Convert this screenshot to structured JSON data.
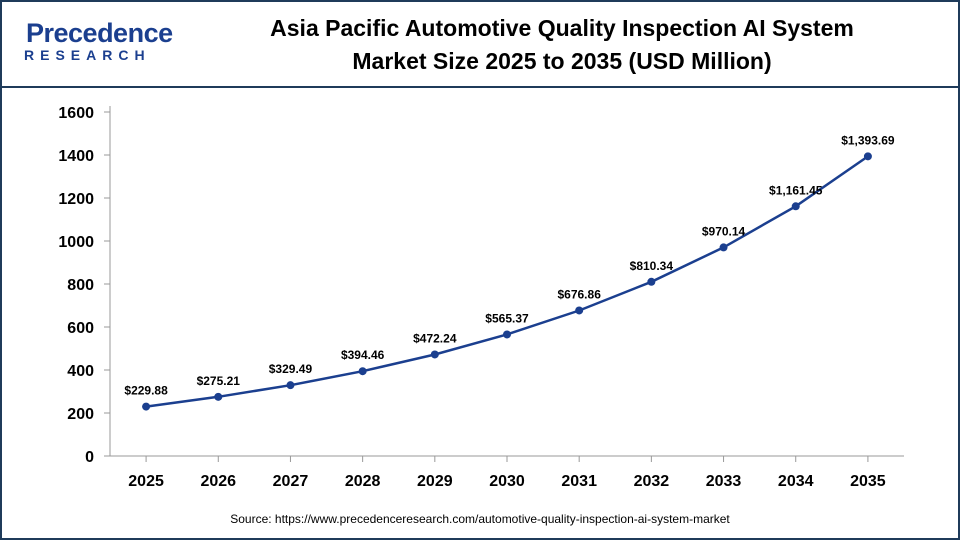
{
  "brand": {
    "name": "Precedence",
    "tagline": "RESEARCH",
    "color": "#1b3f8f"
  },
  "header": {
    "title_line1": "Asia Pacific Automotive Quality Inspection AI System",
    "title_line2": "Market Size 2025 to 2035 (USD Million)"
  },
  "source": "Source: https://www.precedenceresearch.com/automotive-quality-inspection-ai-system-market",
  "chart_data": {
    "type": "line",
    "title": "Asia Pacific Automotive Quality Inspection AI System Market Size 2025 to 2035 (USD Million)",
    "xlabel": "",
    "ylabel": "",
    "categories": [
      "2025",
      "2026",
      "2027",
      "2028",
      "2029",
      "2030",
      "2031",
      "2032",
      "2033",
      "2034",
      "2035"
    ],
    "values": [
      229.88,
      275.21,
      329.49,
      394.46,
      472.24,
      565.37,
      676.86,
      810.34,
      970.14,
      1161.45,
      1393.69
    ],
    "data_labels": [
      "$229.88",
      "$275.21",
      "$329.49",
      "$394.46",
      "$472.24",
      "$565.37",
      "$676.86",
      "$810.34",
      "$970.14",
      "$1,161.45",
      "$1,393.69"
    ],
    "ylim": [
      0,
      1600
    ],
    "yticks": [
      "0",
      "200",
      "400",
      "600",
      "800",
      "1000",
      "1200",
      "1400",
      "1600"
    ],
    "line_color": "#1b3f8f",
    "grid": false,
    "legend": "none"
  }
}
